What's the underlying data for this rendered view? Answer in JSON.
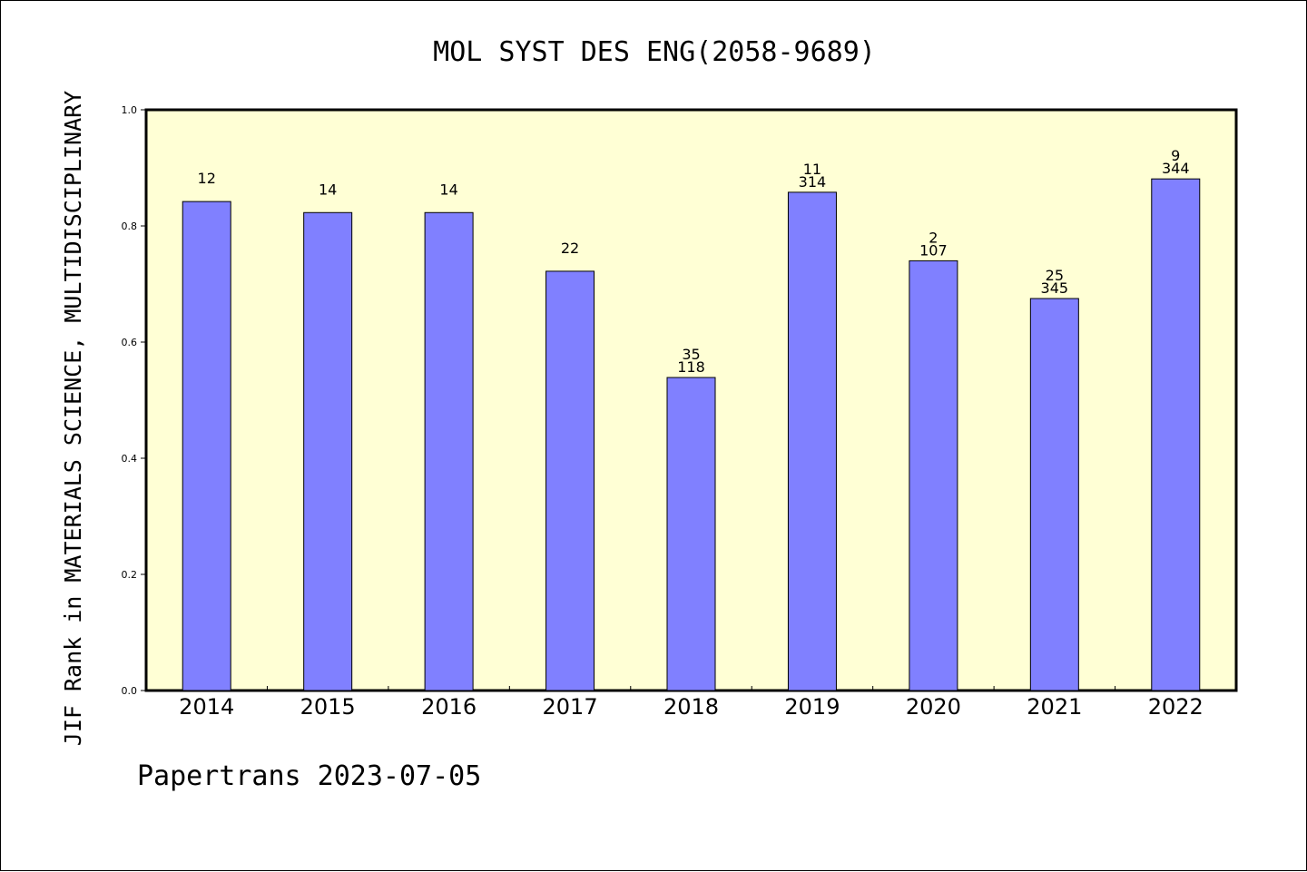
{
  "chart_data": {
    "type": "bar",
    "title": "MOL SYST DES ENG(2058-9689)",
    "ylabel": "JIF Rank in MATERIALS SCIENCE, MULTIDISCIPLINARY",
    "xlabel": "",
    "categories": [
      "2014",
      "2015",
      "2016",
      "2017",
      "2018",
      "2019",
      "2020",
      "2021",
      "2022"
    ],
    "values": [
      0.842,
      0.823,
      0.823,
      0.722,
      0.539,
      0.858,
      0.74,
      0.675,
      0.881
    ],
    "bar_labels": [
      [
        "12"
      ],
      [
        "14"
      ],
      [
        "14"
      ],
      [
        "22"
      ],
      [
        "35",
        "118"
      ],
      [
        "11",
        "314"
      ],
      [
        "2",
        "107"
      ],
      [
        "25",
        "345"
      ],
      [
        "9",
        "344"
      ]
    ],
    "ylim": [
      0,
      1
    ],
    "yticks": [
      "0.0",
      "0.2",
      "0.4",
      "0.6",
      "0.8",
      "1.0"
    ],
    "grid": false,
    "footer": "Papertrans 2023-07-05",
    "colors": {
      "plot_background": "#ffffd5",
      "bar_fill": "#8080ff",
      "bar_stroke": "#000000"
    }
  }
}
